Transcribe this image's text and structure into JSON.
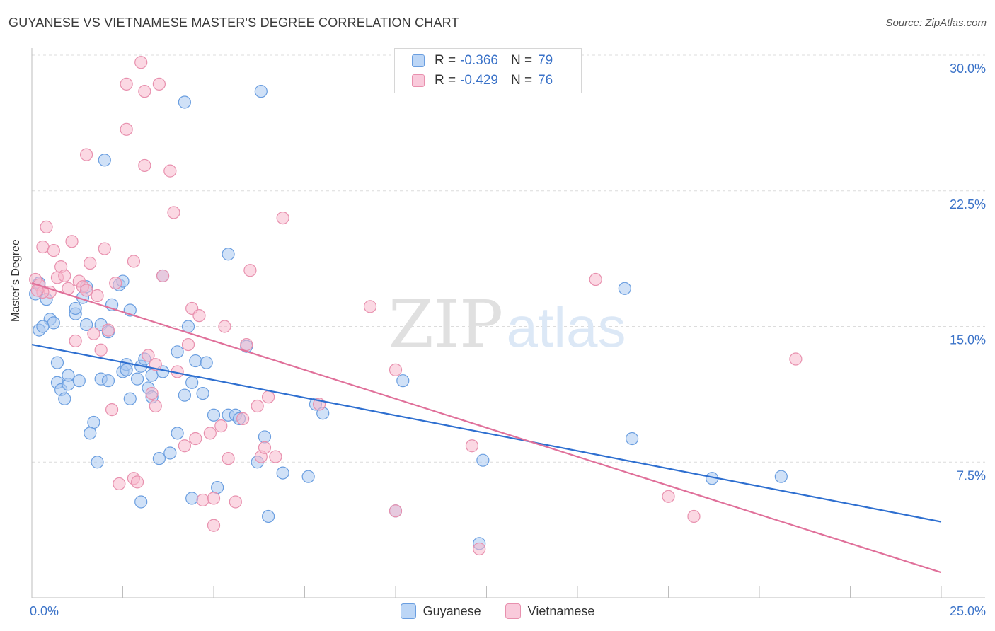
{
  "title": "GUYANESE VS VIETNAMESE MASTER'S DEGREE CORRELATION CHART",
  "source": "Source: ZipAtlas.com",
  "watermark": {
    "zip": "ZIP",
    "atlas": "atlas"
  },
  "colors": {
    "blue_fill": "#a9c8f0",
    "blue_stroke": "#6a9ee0",
    "blue_line": "#2e6fd0",
    "pink_fill": "#f7b8cc",
    "pink_stroke": "#e890ae",
    "pink_line": "#e0709a",
    "axis_text": "#3a72c8",
    "grid": "#dcdcdc"
  },
  "stats": [
    {
      "r_label": "R = ",
      "r_value": "-0.366",
      "n_label": "N = ",
      "n_value": "79"
    },
    {
      "r_label": "R = ",
      "r_value": "-0.429",
      "n_label": "N = ",
      "n_value": "76"
    }
  ],
  "legend": [
    {
      "label": "Guyanese"
    },
    {
      "label": "Vietnamese"
    }
  ],
  "chart_data": {
    "type": "scatter",
    "title": "GUYANESE VS VIETNAMESE MASTER'S DEGREE CORRELATION CHART",
    "xlabel": "",
    "ylabel": "Master's Degree",
    "xlim": [
      0,
      25
    ],
    "ylim": [
      0,
      30
    ],
    "x_tick_labels": [
      {
        "value": 0,
        "label": "0.0%"
      },
      {
        "value": 25,
        "label": "25.0%"
      }
    ],
    "y_tick_labels": [
      {
        "value": 7.5,
        "label": "7.5%"
      },
      {
        "value": 15,
        "label": "15.0%"
      },
      {
        "value": 22.5,
        "label": "22.5%"
      },
      {
        "value": 30,
        "label": "30.0%"
      }
    ],
    "series": [
      {
        "name": "Guyanese",
        "trend": {
          "x": [
            0,
            25
          ],
          "y": [
            14.0,
            4.2
          ]
        },
        "points": [
          [
            0.2,
            14.8
          ],
          [
            0.5,
            15.4
          ],
          [
            0.6,
            15.2
          ],
          [
            0.4,
            16.5
          ],
          [
            0.2,
            17.4
          ],
          [
            0.7,
            11.9
          ],
          [
            0.8,
            11.5
          ],
          [
            0.9,
            11.0
          ],
          [
            0.7,
            13.0
          ],
          [
            1.0,
            11.8
          ],
          [
            1.0,
            12.3
          ],
          [
            1.3,
            12.0
          ],
          [
            1.2,
            15.7
          ],
          [
            1.2,
            16.0
          ],
          [
            1.4,
            16.6
          ],
          [
            1.5,
            15.1
          ],
          [
            1.5,
            17.2
          ],
          [
            1.7,
            9.7
          ],
          [
            1.6,
            9.1
          ],
          [
            1.8,
            7.5
          ],
          [
            1.9,
            12.1
          ],
          [
            1.9,
            15.1
          ],
          [
            2.1,
            12.0
          ],
          [
            2.1,
            14.7
          ],
          [
            2.2,
            16.2
          ],
          [
            2.4,
            17.3
          ],
          [
            2.5,
            17.5
          ],
          [
            2.5,
            12.5
          ],
          [
            2.6,
            12.9
          ],
          [
            2.6,
            12.6
          ],
          [
            2.7,
            15.9
          ],
          [
            2.7,
            11.0
          ],
          [
            2.9,
            12.1
          ],
          [
            3.0,
            12.8
          ],
          [
            3.1,
            13.2
          ],
          [
            3.2,
            11.6
          ],
          [
            3.3,
            11.1
          ],
          [
            3.3,
            12.3
          ],
          [
            3.5,
            7.7
          ],
          [
            3.6,
            12.5
          ],
          [
            3.6,
            17.8
          ],
          [
            3.8,
            8.0
          ],
          [
            4.0,
            9.1
          ],
          [
            4.0,
            13.6
          ],
          [
            4.2,
            11.2
          ],
          [
            4.3,
            15.0
          ],
          [
            4.4,
            11.9
          ],
          [
            4.5,
            13.1
          ],
          [
            4.7,
            11.3
          ],
          [
            4.4,
            5.5
          ],
          [
            3.0,
            5.3
          ],
          [
            5.0,
            10.1
          ],
          [
            5.1,
            6.1
          ],
          [
            5.4,
            10.1
          ],
          [
            5.4,
            19.0
          ],
          [
            5.6,
            10.1
          ],
          [
            5.7,
            9.9
          ],
          [
            5.9,
            13.9
          ],
          [
            6.2,
            7.5
          ],
          [
            6.4,
            8.9
          ],
          [
            6.5,
            4.5
          ],
          [
            6.9,
            6.9
          ],
          [
            7.6,
            6.7
          ],
          [
            7.8,
            10.7
          ],
          [
            8.0,
            10.2
          ],
          [
            10.0,
            4.8
          ],
          [
            10.2,
            12.0
          ],
          [
            12.4,
            7.6
          ],
          [
            12.3,
            3.0
          ],
          [
            16.3,
            17.1
          ],
          [
            16.5,
            8.8
          ],
          [
            18.7,
            6.6
          ],
          [
            20.6,
            6.7
          ],
          [
            4.2,
            27.4
          ],
          [
            6.3,
            28.0
          ],
          [
            2.0,
            24.2
          ],
          [
            0.1,
            16.8
          ],
          [
            0.3,
            15.0
          ],
          [
            4.8,
            13.0
          ]
        ]
      },
      {
        "name": "Vietnamese",
        "trend": {
          "x": [
            0,
            25
          ],
          "y": [
            17.4,
            1.4
          ]
        },
        "points": [
          [
            0.1,
            17.6
          ],
          [
            0.2,
            17.3
          ],
          [
            0.3,
            19.4
          ],
          [
            0.4,
            20.5
          ],
          [
            0.5,
            16.9
          ],
          [
            0.6,
            19.2
          ],
          [
            0.7,
            17.7
          ],
          [
            0.8,
            18.3
          ],
          [
            0.9,
            17.8
          ],
          [
            1.0,
            17.1
          ],
          [
            1.1,
            19.7
          ],
          [
            1.2,
            14.2
          ],
          [
            1.3,
            17.5
          ],
          [
            1.4,
            17.2
          ],
          [
            1.5,
            17.0
          ],
          [
            1.6,
            18.5
          ],
          [
            1.7,
            14.6
          ],
          [
            1.8,
            16.7
          ],
          [
            1.9,
            13.7
          ],
          [
            2.0,
            19.3
          ],
          [
            2.1,
            14.8
          ],
          [
            2.2,
            10.4
          ],
          [
            2.3,
            17.4
          ],
          [
            2.4,
            6.3
          ],
          [
            2.6,
            25.9
          ],
          [
            2.6,
            28.4
          ],
          [
            2.8,
            18.6
          ],
          [
            2.8,
            6.6
          ],
          [
            2.9,
            6.4
          ],
          [
            3.0,
            29.6
          ],
          [
            3.1,
            28.0
          ],
          [
            3.1,
            23.9
          ],
          [
            3.2,
            13.4
          ],
          [
            3.4,
            12.9
          ],
          [
            3.3,
            11.3
          ],
          [
            3.4,
            10.6
          ],
          [
            3.5,
            28.4
          ],
          [
            3.6,
            17.8
          ],
          [
            3.8,
            23.6
          ],
          [
            3.9,
            21.3
          ],
          [
            4.0,
            12.5
          ],
          [
            4.2,
            8.4
          ],
          [
            4.3,
            14.0
          ],
          [
            4.4,
            16.0
          ],
          [
            4.5,
            8.8
          ],
          [
            4.6,
            15.6
          ],
          [
            4.7,
            5.4
          ],
          [
            4.9,
            9.1
          ],
          [
            5.0,
            5.5
          ],
          [
            5.0,
            4.0
          ],
          [
            5.2,
            9.5
          ],
          [
            5.3,
            15.0
          ],
          [
            5.4,
            7.7
          ],
          [
            5.6,
            5.3
          ],
          [
            5.8,
            9.9
          ],
          [
            5.9,
            14.0
          ],
          [
            6.0,
            18.1
          ],
          [
            6.2,
            10.6
          ],
          [
            6.3,
            7.8
          ],
          [
            6.4,
            8.3
          ],
          [
            6.5,
            11.1
          ],
          [
            6.7,
            7.8
          ],
          [
            6.9,
            21.0
          ],
          [
            7.9,
            10.7
          ],
          [
            9.3,
            16.1
          ],
          [
            10.0,
            4.8
          ],
          [
            10.0,
            12.6
          ],
          [
            12.1,
            8.4
          ],
          [
            12.3,
            2.7
          ],
          [
            15.5,
            17.6
          ],
          [
            17.5,
            5.6
          ],
          [
            18.2,
            4.5
          ],
          [
            21.0,
            13.2
          ],
          [
            0.3,
            16.9
          ],
          [
            1.5,
            24.5
          ],
          [
            0.15,
            17.0
          ]
        ]
      }
    ]
  }
}
